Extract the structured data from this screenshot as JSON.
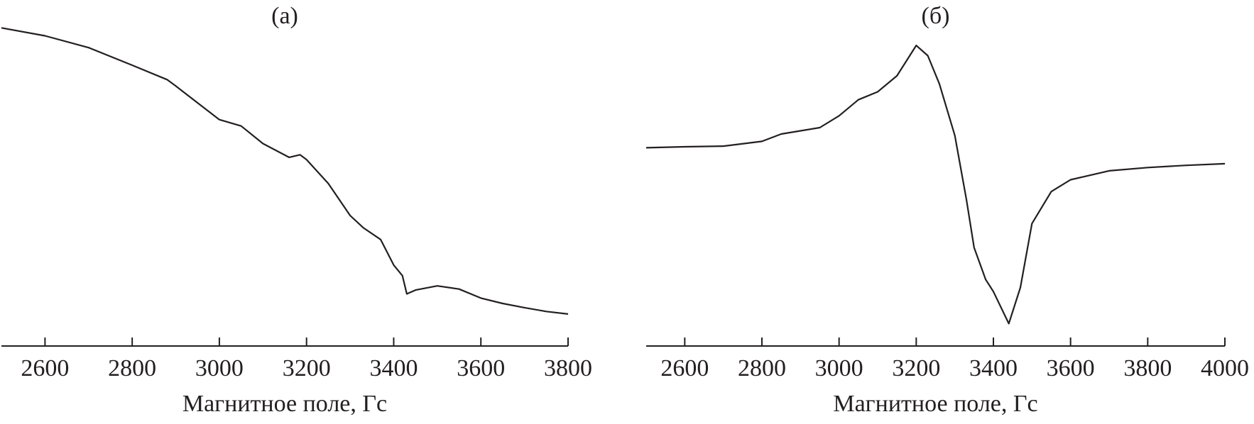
{
  "chart_data": [
    {
      "type": "line",
      "title": "(а)",
      "x_label": "Магнитное поле, Гс",
      "x": [
        2500,
        2600,
        2700,
        2800,
        2880,
        2900,
        3000,
        3050,
        3100,
        3160,
        3185,
        3200,
        3250,
        3300,
        3330,
        3370,
        3400,
        3420,
        3430,
        3450,
        3500,
        3550,
        3600,
        3650,
        3700,
        3750,
        3800
      ],
      "series": [
        {
          "color": "#231f20",
          "values": [
            99.5,
            97,
            93.3,
            87.8,
            83.3,
            81.3,
            70.8,
            68.8,
            63.3,
            59,
            59.8,
            58.3,
            50.8,
            40.8,
            37,
            33.3,
            25.3,
            22,
            16.3,
            17.5,
            18.8,
            17.8,
            15,
            13.3,
            12,
            10.8,
            10
          ]
        }
      ],
      "xlim": [
        2500,
        3800
      ],
      "xticks": [
        2600,
        2800,
        3000,
        3200,
        3400,
        3600,
        3800
      ],
      "ylim": [
        0,
        100
      ]
    },
    {
      "type": "line",
      "title": "(б)",
      "x_label": "Магнитное поле, Гс",
      "x": [
        2500,
        2600,
        2700,
        2800,
        2850,
        2900,
        2950,
        3000,
        3050,
        3100,
        3150,
        3200,
        3230,
        3260,
        3300,
        3330,
        3350,
        3380,
        3400,
        3440,
        3470,
        3500,
        3550,
        3600,
        3700,
        3800,
        3900,
        4000
      ],
      "series": [
        {
          "color": "#231f20",
          "values": [
            62,
            62.3,
            62.5,
            64,
            66.3,
            67.3,
            68.3,
            72,
            77,
            79.5,
            84.5,
            94,
            90.8,
            82,
            65.8,
            45.8,
            30.8,
            20.8,
            17,
            7,
            18.3,
            38.3,
            48.3,
            52,
            54.8,
            55.8,
            56.5,
            57
          ]
        }
      ],
      "xlim": [
        2500,
        4000
      ],
      "xticks": [
        2600,
        2800,
        3000,
        3200,
        3400,
        3600,
        3800,
        4000
      ],
      "ylim": [
        0,
        100
      ]
    }
  ]
}
